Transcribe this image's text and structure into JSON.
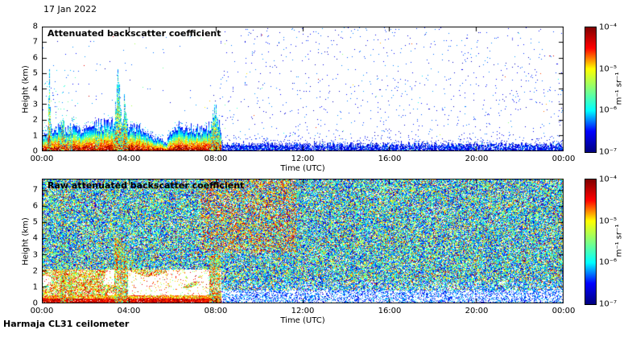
{
  "page": {
    "date_label": "17 Jan 2022",
    "footer_label": "Harmaja CL31 ceilometer",
    "background": "#ffffff"
  },
  "chart_data": [
    {
      "type": "heatmap",
      "title": "Attenuated backscatter coefficient",
      "xlabel": "Time (UTC)",
      "ylabel": "Height (km)",
      "x_ticks": [
        "00:00",
        "04:00",
        "08:00",
        "12:00",
        "16:00",
        "20:00",
        "00:00"
      ],
      "x_range_hours": [
        0,
        24
      ],
      "y_ticks": [
        0,
        1,
        2,
        3,
        4,
        5,
        6,
        7,
        8
      ],
      "y_range_km": [
        0,
        8
      ],
      "colorbar": {
        "scale": "log",
        "ticks": [
          "10⁻⁴",
          "10⁻⁵",
          "10⁻⁶",
          "10⁻⁷"
        ],
        "min": 1e-07,
        "max": 0.0001,
        "unit": "m⁻¹ sr⁻¹",
        "colormap": "jet",
        "stops": [
          "#00007f",
          "#0000ff",
          "#00ffff",
          "#80ff80",
          "#ffff00",
          "#ff0000",
          "#800000"
        ]
      },
      "features": [
        "strong red-yellow boundary-layer aerosol signal below ~1.5 km from 00:00 to ~08:00",
        "vertical plumes near 01:00 (to ~2 km), 03:30-04:00 (to ~4 km) and 08:00 (to ~2.5 km)",
        "weak blue near-surface layer (~0.3 km) from 08:00 to 24:00",
        "sparse blue noise speckle above, occasional colored specks"
      ]
    },
    {
      "type": "heatmap",
      "title": "Raw attenuated backscatter coefficient",
      "xlabel": "Time (UTC)",
      "ylabel": "Height (km)",
      "x_ticks": [
        "00:00",
        "04:00",
        "08:00",
        "12:00",
        "16:00",
        "20:00",
        "00:00"
      ],
      "x_range_hours": [
        0,
        24
      ],
      "y_ticks": [
        0,
        1,
        2,
        3,
        4,
        5,
        6,
        7
      ],
      "y_range_km": [
        0,
        7.7
      ],
      "colorbar": {
        "scale": "log",
        "ticks": [
          "10⁻⁴",
          "10⁻⁵",
          "10⁻⁶",
          "10⁻⁷"
        ],
        "min": 1e-07,
        "max": 0.0001,
        "unit": "m⁻¹ sr⁻¹",
        "colormap": "jet",
        "stops": [
          "#00007f",
          "#0000ff",
          "#00ffff",
          "#80ff80",
          "#ffff00",
          "#ff0000",
          "#800000"
        ]
      },
      "features": [
        "dense green/cyan/blue instrument noise speckle over full height range",
        "white low-signal blobs below ~2 km before 08:00 with red surface layer",
        "enhanced orange/red noise above ~3 km between ~08:00 and ~11:30",
        "lighter white/blue band below ~1 km after 08:00"
      ]
    }
  ]
}
